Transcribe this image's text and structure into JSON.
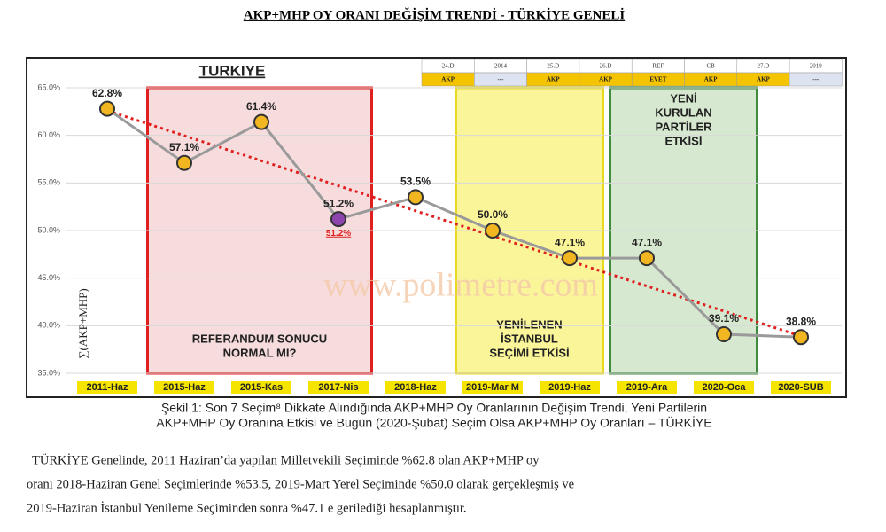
{
  "header": {
    "title": "AKP+MHP OY ORANI DEĞİŞİM TRENDİ - TÜRKİYE GENELİ"
  },
  "chart_data": {
    "type": "line",
    "title": "TURKIYE",
    "y_label": "∑(AKP+MHP)",
    "watermark": "www.polimetre.com",
    "categories": [
      "2011-Haz",
      "2015-Haz",
      "2015-Kas",
      "2017-Nis",
      "2018-Haz",
      "2019-Mar M",
      "2019-Haz",
      "2019-Ara",
      "2020-Oca",
      "2020-SUB"
    ],
    "series": [
      {
        "color": "#9a9a9a",
        "values": [
          62.8,
          57.1,
          61.4,
          51.2,
          53.5,
          50.0,
          47.1,
          47.1,
          39.1,
          38.8
        ],
        "value_labels": [
          "62.8%",
          "57.1%",
          "61.4%",
          "51.2%",
          "53.5%",
          "50.0%",
          "47.1%",
          "47.1%",
          "39.1%",
          "38.8%"
        ],
        "marker_colors": [
          "#f2b620",
          "#f2b620",
          "#f2b620",
          "#8e44ad",
          "#f2b620",
          "#f2b620",
          "#f2b620",
          "#f2b620",
          "#f2b620",
          "#f2b620"
        ]
      }
    ],
    "extra_label": {
      "index": 3,
      "text": "51.2%",
      "color": "#e02020"
    },
    "trend": {
      "color": "#e02020",
      "values": [
        62.6,
        38.9
      ]
    },
    "ylim": [
      35,
      65
    ],
    "yticks": [
      {
        "value": 35,
        "label": "35.0%"
      },
      {
        "value": 40,
        "label": "40.0%"
      },
      {
        "value": 45,
        "label": "45.0%"
      },
      {
        "value": 50,
        "label": "50.0%"
      },
      {
        "value": 55,
        "label": "55.0%"
      },
      {
        "value": 60,
        "label": "60.0%"
      },
      {
        "value": 65,
        "label": "65.0%"
      }
    ],
    "grid": true,
    "annotations": [
      {
        "lines": [
          "REFERANDUM SONUCU",
          "NORMAL MI?"
        ],
        "color": "#e02020",
        "fill": "#f6dcdc"
      },
      {
        "lines": [
          "YENİLENEN",
          "İSTANBUL",
          "SEÇİMİ ETKİSİ"
        ],
        "color": "#e8d820",
        "fill": "#fbf59a"
      },
      {
        "lines": [
          "YENİ",
          "KURULAN",
          "PARTİLER",
          "ETKİSİ"
        ],
        "color": "#3f8a3f",
        "fill": "#d6e8cf"
      }
    ],
    "election_table": {
      "headers": [
        "24.D",
        "2014",
        "25.D",
        "26.D",
        "REF",
        "CB",
        "27.D",
        "2019"
      ],
      "results": [
        "AKP",
        "---",
        "AKP",
        "AKP",
        "EVET",
        "AKP",
        "AKP",
        "---"
      ]
    }
  },
  "caption": {
    "lines": [
      "Şekil 1: Son 7 Seçim⁸ Dikkate Alındığında AKP+MHP Oy Oranlarının Değişim Trendi, Yeni Partilerin",
      "AKP+MHP Oy Oranına Etkisi ve Bugün (2020-Şubat) Seçim Olsa AKP+MHP Oy Oranları – TÜRKİYE"
    ]
  },
  "paragraph": {
    "lines": [
      "TÜRKİYE Genelinde, 2011 Haziran’da yapılan Milletvekili Seçiminde %62.8 olan AKP+MHP oy",
      "oranı 2018-Haziran Genel Seçimlerinde %53.5, 2019-Mart Yerel Seçiminde %50.0 olarak gerçekleşmiş ve",
      "2019-Haziran İstanbul Yenileme Seçiminden sonra %47.1 e gerilediği hesaplanmıştır."
    ]
  }
}
